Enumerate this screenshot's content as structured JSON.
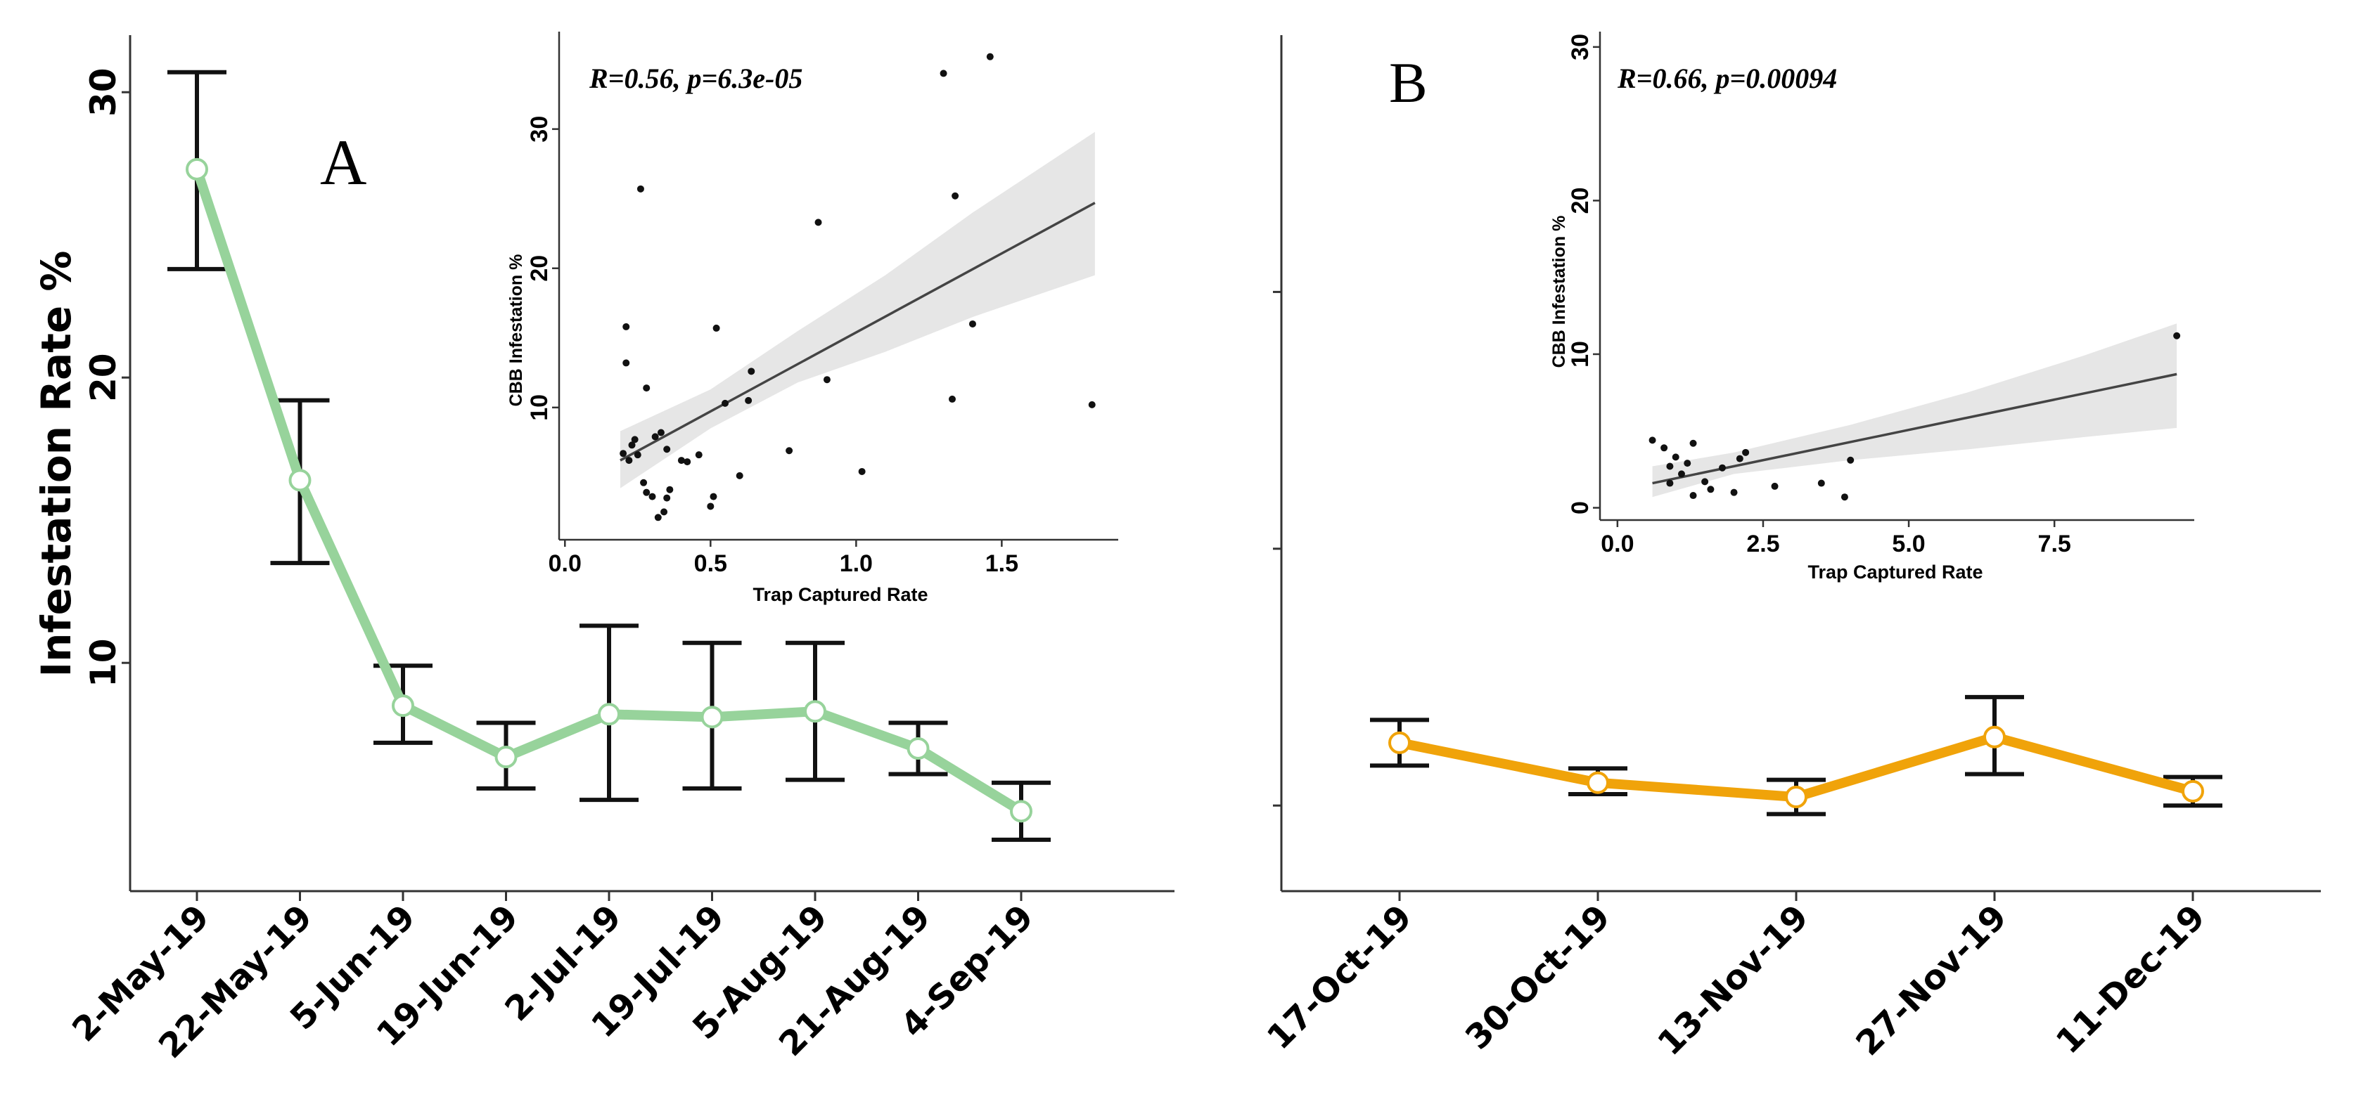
{
  "colors": {
    "panel_a_line": "#97d39b",
    "panel_b_line": "#f0a30a",
    "axis": "#333333",
    "errorbar": "#111111",
    "ribbon": "#e6e6e6",
    "fit_line": "#444444",
    "point": "#111111"
  },
  "chart_data": [
    {
      "id": "panel-a",
      "type": "line",
      "panel_label": "A",
      "ylabel": "Infestation Rate %",
      "xlabel": "",
      "ylim": [
        2,
        32
      ],
      "yticks": [
        10,
        20,
        30
      ],
      "categories": [
        "2-May-19",
        "22-May-19",
        "5-Jun-19",
        "19-Jun-19",
        "2-Jul-19",
        "19-Jul-19",
        "5-Aug-19",
        "21-Aug-19",
        "4-Sep-19"
      ],
      "series": [
        {
          "name": "Infestation Rate",
          "values": [
            27.3,
            16.4,
            8.5,
            6.7,
            8.2,
            8.1,
            8.3,
            7.0,
            4.8
          ],
          "err_low": [
            23.8,
            13.5,
            7.2,
            5.6,
            5.2,
            5.6,
            5.9,
            6.1,
            3.8
          ],
          "err_high": [
            30.7,
            19.2,
            9.9,
            7.9,
            11.3,
            10.7,
            10.7,
            7.9,
            5.8
          ]
        }
      ],
      "inset": {
        "type": "scatter",
        "annotation": "R=0.56, p=6.3e-05",
        "xlabel": "Trap Captured Rate",
        "ylabel": "CBB Infestation %",
        "xlim": [
          -0.02,
          1.9
        ],
        "ylim": [
          0.5,
          37
        ],
        "xticks": [
          0.0,
          0.5,
          1.0,
          1.5
        ],
        "xtick_labels": [
          "0.0",
          "0.5",
          "1.0",
          "1.5"
        ],
        "yticks": [
          10,
          20,
          30
        ],
        "ytick_labels": [
          "10",
          "20",
          "30"
        ],
        "points": [
          [
            0.2,
            6.7
          ],
          [
            0.21,
            15.8
          ],
          [
            0.21,
            13.2
          ],
          [
            0.22,
            6.2
          ],
          [
            0.23,
            7.3
          ],
          [
            0.24,
            7.7
          ],
          [
            0.25,
            6.6
          ],
          [
            0.26,
            25.7
          ],
          [
            0.27,
            4.6
          ],
          [
            0.28,
            11.4
          ],
          [
            0.28,
            3.9
          ],
          [
            0.3,
            3.6
          ],
          [
            0.31,
            7.9
          ],
          [
            0.32,
            2.1
          ],
          [
            0.33,
            8.2
          ],
          [
            0.34,
            2.5
          ],
          [
            0.35,
            3.5
          ],
          [
            0.36,
            4.1
          ],
          [
            0.35,
            7.0
          ],
          [
            0.4,
            6.2
          ],
          [
            0.42,
            6.1
          ],
          [
            0.46,
            6.6
          ],
          [
            0.5,
            2.9
          ],
          [
            0.51,
            3.6
          ],
          [
            0.52,
            15.7
          ],
          [
            0.55,
            10.3
          ],
          [
            0.6,
            5.1
          ],
          [
            0.63,
            10.5
          ],
          [
            0.64,
            12.6
          ],
          [
            0.77,
            6.9
          ],
          [
            0.87,
            23.3
          ],
          [
            0.9,
            12.0
          ],
          [
            1.02,
            5.4
          ],
          [
            1.3,
            34.0
          ],
          [
            1.33,
            10.6
          ],
          [
            1.34,
            25.2
          ],
          [
            1.4,
            16.0
          ],
          [
            1.46,
            35.2
          ],
          [
            1.81,
            10.2
          ]
        ],
        "fit": {
          "x_start": 0.19,
          "x_end": 1.82,
          "y_start": 6.2,
          "y_end": 24.7
        },
        "band": [
          [
            0.19,
            4.2,
            8.3
          ],
          [
            0.5,
            8.5,
            11.3
          ],
          [
            0.8,
            11.8,
            15.5
          ],
          [
            1.1,
            14.0,
            19.5
          ],
          [
            1.4,
            16.5,
            24.0
          ],
          [
            1.82,
            19.5,
            29.8
          ]
        ]
      }
    },
    {
      "id": "panel-b",
      "type": "line",
      "panel_label": "B",
      "ylabel": "",
      "xlabel": "",
      "ylim": [
        2,
        32
      ],
      "categories": [
        "17-Oct-19",
        "30-Oct-19",
        "13-Nov-19",
        "27-Nov-19",
        "11-Dec-19"
      ],
      "series": [
        {
          "name": "Infestation Rate",
          "values": [
            7.2,
            5.8,
            5.3,
            7.4,
            5.5
          ],
          "err_low": [
            6.4,
            5.4,
            4.7,
            6.1,
            5.0
          ],
          "err_high": [
            8.0,
            6.3,
            5.9,
            8.8,
            6.0
          ]
        }
      ],
      "inset": {
        "type": "scatter",
        "annotation": "R=0.66, p=0.00094",
        "xlabel": "Trap Captured Rate",
        "ylabel": "CBB Infestation %",
        "xlim": [
          -0.3,
          9.9
        ],
        "ylim": [
          -0.8,
          31
        ],
        "xticks": [
          0.0,
          2.5,
          5.0,
          7.5
        ],
        "xtick_labels": [
          "0.0",
          "2.5",
          "5.0",
          "7.5"
        ],
        "yticks": [
          0,
          10,
          20,
          30
        ],
        "ytick_labels": [
          "0",
          "10",
          "20",
          "30"
        ],
        "points": [
          [
            0.6,
            4.4
          ],
          [
            0.8,
            3.9
          ],
          [
            0.9,
            2.7
          ],
          [
            1.0,
            3.3
          ],
          [
            0.9,
            1.6
          ],
          [
            1.1,
            2.2
          ],
          [
            1.2,
            2.9
          ],
          [
            1.3,
            4.2
          ],
          [
            1.3,
            0.8
          ],
          [
            1.5,
            1.7
          ],
          [
            1.6,
            1.2
          ],
          [
            1.8,
            2.6
          ],
          [
            2.0,
            1.0
          ],
          [
            2.1,
            3.2
          ],
          [
            2.2,
            3.6
          ],
          [
            2.7,
            1.4
          ],
          [
            3.5,
            1.6
          ],
          [
            3.9,
            0.7
          ],
          [
            4.0,
            3.1
          ],
          [
            9.6,
            11.2
          ]
        ],
        "fit": {
          "x_start": 0.6,
          "x_end": 9.6,
          "y_start": 1.6,
          "y_end": 8.7
        },
        "band": [
          [
            0.6,
            0.7,
            2.7
          ],
          [
            2.0,
            2.2,
            3.6
          ],
          [
            4.0,
            3.1,
            5.4
          ],
          [
            6.0,
            3.8,
            7.5
          ],
          [
            8.0,
            4.6,
            9.9
          ],
          [
            9.6,
            5.2,
            12.0
          ]
        ]
      }
    }
  ]
}
